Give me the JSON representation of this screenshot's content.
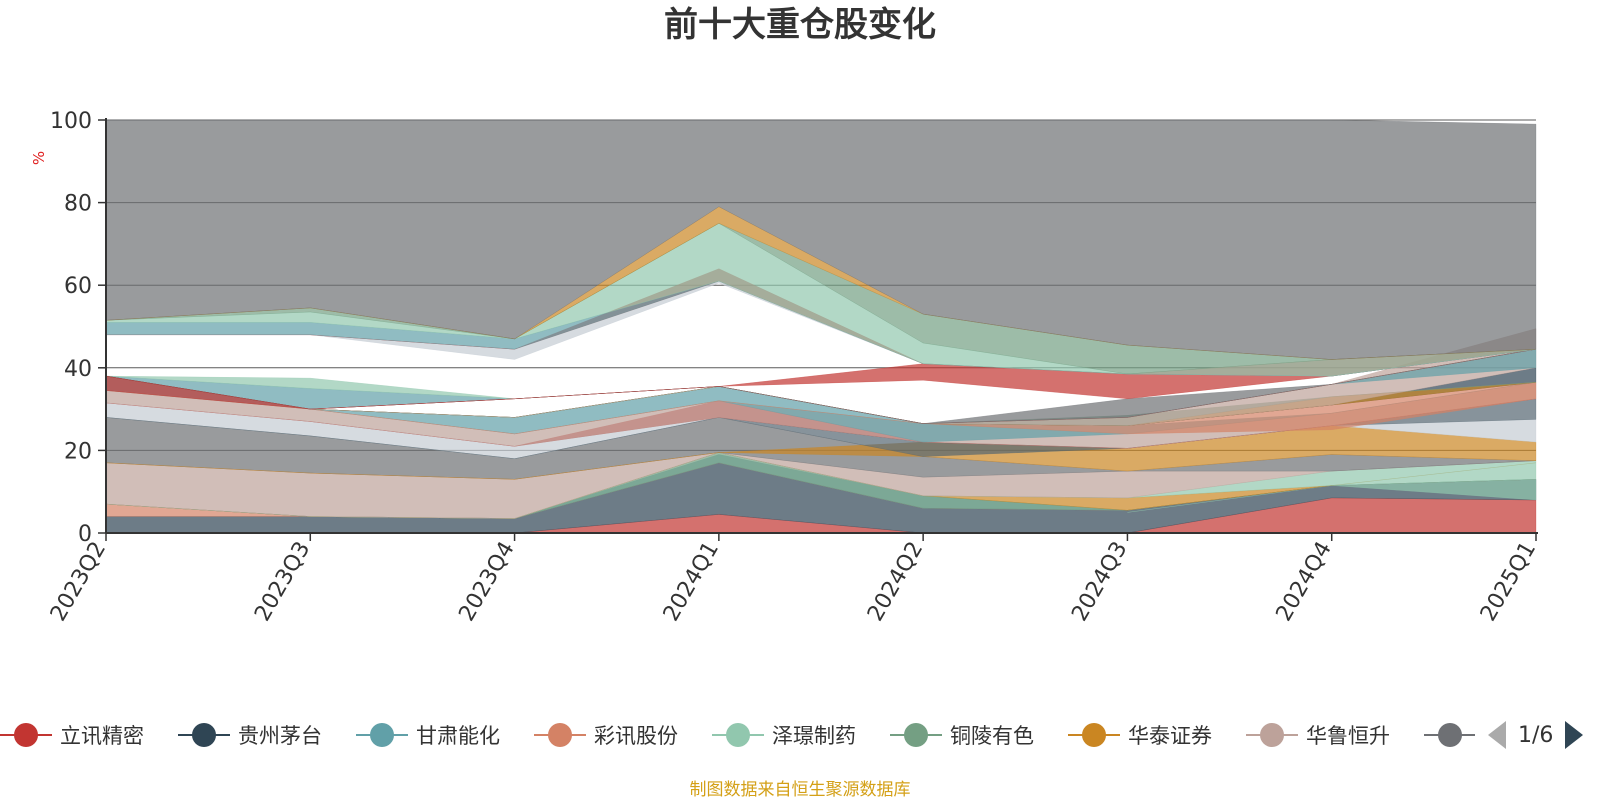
{
  "chart_data": {
    "type": "area",
    "title": "前十大重仓股变化",
    "ylabel": "%",
    "ylim": [
      0,
      100
    ],
    "yticks": [
      0,
      20,
      40,
      60,
      80,
      100
    ],
    "grid": true,
    "categories": [
      "2023Q2",
      "2023Q3",
      "2023Q4",
      "2024Q1",
      "2024Q2",
      "2024Q3",
      "2024Q4",
      "2025Q1"
    ],
    "bands": [
      {
        "color": "#c23531",
        "lower": [
          null,
          null,
          0,
          0,
          0,
          0,
          0,
          0
        ],
        "upper": [
          null,
          null,
          0,
          4.5,
          0,
          0,
          8.5,
          8
        ]
      },
      {
        "color": "#2f4554",
        "lower": [
          0,
          0,
          0,
          4.5,
          0,
          0,
          8.5,
          8
        ],
        "upper": [
          4,
          4,
          3.5,
          17,
          6,
          5.5,
          11.5,
          13
        ]
      },
      {
        "color": "#91c7ae",
        "lower": [
          null,
          null,
          null,
          null,
          null,
          5,
          11.5,
          8
        ],
        "upper": [
          null,
          null,
          null,
          null,
          null,
          5,
          11.5,
          13
        ]
      },
      {
        "color": "#d48265",
        "lower": [
          4,
          4,
          3.5,
          17,
          6,
          5.5,
          11.5,
          13
        ],
        "upper": [
          7,
          4,
          3.5,
          17,
          6,
          5.5,
          11.5,
          13
        ]
      },
      {
        "color": "#61a0a8",
        "lower": [
          7,
          4,
          3.5,
          17,
          6,
          5.5,
          11.5,
          13
        ],
        "upper": [
          7,
          4,
          3.5,
          19,
          9,
          5.5,
          11.5,
          13
        ]
      },
      {
        "color": "#749f83",
        "lower": [
          7,
          4,
          3.5,
          17,
          6,
          5.5,
          11.5,
          13
        ],
        "upper": [
          7,
          4,
          3.5,
          19.5,
          9,
          5.5,
          11.5,
          13
        ]
      },
      {
        "color": "#ca8622",
        "lower": [
          7,
          4,
          3.5,
          19.5,
          9,
          5.5,
          11.5,
          17
        ],
        "upper": [
          7,
          4,
          3.5,
          19.5,
          9,
          8.5,
          11.5,
          17
        ]
      },
      {
        "color": "#91c7ae",
        "lower": [
          7,
          4,
          3.5,
          19.5,
          9,
          8.5,
          11.5,
          13
        ],
        "upper": [
          7,
          4,
          3.5,
          19.5,
          9,
          8.5,
          15,
          17.5
        ]
      },
      {
        "color": "#bda29a",
        "lower": [
          7,
          4,
          3.5,
          19.5,
          9,
          8.5,
          15,
          17.5
        ],
        "upper": [
          17,
          14.5,
          13,
          19.5,
          13.5,
          15,
          15,
          17.5
        ]
      },
      {
        "color": "#6e7074",
        "lower": [
          17,
          14.5,
          13,
          19.5,
          13.5,
          15,
          15,
          17.5
        ],
        "upper": [
          28,
          23.5,
          18,
          28,
          18.5,
          15,
          19,
          17.5
        ]
      },
      {
        "color": "#ca8622",
        "lower": [
          17,
          14.5,
          13,
          19.5,
          18.5,
          15,
          19,
          17.5
        ],
        "upper": [
          17,
          14.5,
          13,
          19.5,
          22,
          20.5,
          26,
          22
        ]
      },
      {
        "color": "#c4ccd3",
        "lower": [
          28,
          23.5,
          18,
          28,
          22,
          20.5,
          26,
          22
        ],
        "upper": [
          31.5,
          27,
          21,
          28,
          22,
          20.5,
          26,
          27.5
        ]
      },
      {
        "color": "#546570",
        "lower": [
          28,
          23.5,
          18,
          28,
          18.5,
          20.5,
          26,
          27.5
        ],
        "upper": [
          28,
          23.5,
          18,
          28,
          22,
          20.5,
          26,
          32.5
        ]
      },
      {
        "color": "#c23531",
        "lower": [
          31.5,
          27,
          21,
          28,
          22,
          20.5,
          26,
          32.5
        ],
        "upper": [
          31.5,
          27,
          21,
          32,
          22,
          20.5,
          26,
          32.5
        ]
      },
      {
        "color": "#bda29a",
        "lower": [
          31.5,
          27,
          21,
          28,
          22,
          20.5,
          26,
          32.5
        ],
        "upper": [
          34.5,
          30,
          24,
          32,
          26.5,
          24,
          29,
          36.5
        ]
      },
      {
        "color": "#61a0a8",
        "lower": [
          34.5,
          30,
          24,
          32,
          22,
          24,
          29,
          36.5
        ],
        "upper": [
          38,
          30,
          28,
          35.5,
          26.5,
          26,
          29,
          36.5
        ]
      },
      {
        "color": "#d48265",
        "lower": [
          34.5,
          30,
          24,
          32,
          26.5,
          24,
          25,
          32.5
        ],
        "upper": [
          34.5,
          30,
          24,
          32,
          26.5,
          26,
          31,
          36.5
        ]
      },
      {
        "color": "#2f4554",
        "lower": [
          38,
          30,
          28,
          35.5,
          26.5,
          26,
          31,
          36.5
        ],
        "upper": [
          38,
          30,
          28,
          35.5,
          26.5,
          26,
          31,
          40
        ]
      },
      {
        "color": "#ca8622",
        "lower": [
          38,
          30,
          28,
          35.5,
          26.5,
          26,
          31,
          36.5
        ],
        "upper": [
          38,
          30,
          28,
          35.5,
          26.5,
          26,
          33,
          36.5
        ]
      },
      {
        "color": "#749f83",
        "lower": [
          38,
          30,
          28,
          35.5,
          26.5,
          26,
          33,
          36.5
        ],
        "upper": [
          38,
          30,
          28,
          35.5,
          26.5,
          28.5,
          33,
          36.5
        ]
      },
      {
        "color": "#bda29a",
        "lower": [
          38,
          30,
          28,
          35.5,
          26.5,
          26,
          31,
          40
        ],
        "upper": [
          38,
          30,
          28,
          35.5,
          26.5,
          28,
          36,
          49.5
        ]
      },
      {
        "color": "#61a0a8",
        "lower": [
          38,
          30,
          32.5,
          35.5,
          26.5,
          28,
          36,
          40
        ],
        "upper": [
          38,
          35,
          32.5,
          35.5,
          26.5,
          28,
          36,
          44.5
        ]
      },
      {
        "color": "#91c7ae",
        "lower": [
          38,
          35,
          32.5,
          35.5,
          26.5,
          28,
          36,
          44.5
        ],
        "upper": [
          38,
          37.5,
          32.5,
          35.5,
          26.5,
          28,
          36,
          44.5
        ]
      },
      {
        "color": "#c23531",
        "lower": [
          34.5,
          30,
          32.5,
          35.5,
          26.5,
          28,
          36,
          44.5
        ],
        "upper": [
          38,
          30,
          32.5,
          35.5,
          26.5,
          28,
          36,
          44.5
        ]
      },
      {
        "color": "#6e7074",
        "lower": [
          38,
          30,
          32.5,
          35.5,
          26.5,
          28,
          36,
          44.5
        ],
        "upper": [
          38,
          30,
          32.5,
          35.5,
          26.5,
          32.5,
          36,
          44.5
        ]
      },
      {
        "color": "#c23531",
        "lower": [
          38,
          30,
          32.5,
          35.5,
          37,
          32.5,
          38,
          44.5
        ],
        "upper": [
          38,
          30,
          32.5,
          35.5,
          41,
          38.5,
          38,
          44.5
        ]
      },
      {
        "color": "#c4ccd3",
        "lower": [
          48,
          48,
          42,
          60.5,
          41,
          38.5,
          38,
          44.5
        ],
        "upper": [
          48,
          48,
          44.5,
          61,
          41,
          38.5,
          38,
          44.5
        ]
      },
      {
        "color": "#c23531",
        "lower": [
          48,
          48,
          44.5,
          61,
          41,
          38.5,
          38,
          44.5
        ],
        "upper": [
          48,
          48,
          44.5,
          64,
          41,
          38.5,
          42,
          44.5
        ]
      },
      {
        "color": "#61a0a8",
        "lower": [
          48,
          48,
          44.5,
          61,
          41,
          38.5,
          38,
          44.5
        ],
        "upper": [
          51,
          51,
          47,
          61,
          41,
          38.5,
          38,
          44.5
        ]
      },
      {
        "color": "#91c7ae",
        "lower": [
          51,
          51,
          47,
          61,
          41,
          38.5,
          38,
          44.5
        ],
        "upper": [
          51.5,
          53.5,
          47,
          75,
          46,
          38.5,
          42,
          44.5
        ]
      },
      {
        "color": "#749f83",
        "lower": [
          51.5,
          53.5,
          47,
          75,
          46,
          38.5,
          42,
          44.5
        ],
        "upper": [
          51.5,
          54.5,
          47,
          75,
          53,
          45.5,
          42,
          44.5
        ]
      },
      {
        "color": "#ca8622",
        "lower": [
          51.5,
          54.5,
          47,
          75,
          53,
          45.5,
          42,
          44.5
        ],
        "upper": [
          51.5,
          54.5,
          47,
          79,
          53,
          45.5,
          42,
          44.5
        ]
      },
      {
        "color": "#6e7074",
        "lower": [
          51.5,
          54.5,
          47,
          79,
          53,
          45.5,
          42,
          44.5
        ],
        "upper": [
          100,
          100,
          100,
          100,
          100,
          100,
          100,
          99
        ]
      }
    ]
  },
  "legend": {
    "items": [
      {
        "name": "立讯精密",
        "color": "#c23531"
      },
      {
        "name": "贵州茅台",
        "color": "#2f4554"
      },
      {
        "name": "甘肃能化",
        "color": "#61a0a8"
      },
      {
        "name": "彩讯股份",
        "color": "#d48265"
      },
      {
        "name": "泽璟制药",
        "color": "#91c7ae"
      },
      {
        "name": "铜陵有色",
        "color": "#749f83"
      },
      {
        "name": "华泰证券",
        "color": "#ca8622"
      },
      {
        "name": "华鲁恒升",
        "color": "#bda29a"
      },
      {
        "name": "",
        "color": "#6e7074"
      }
    ],
    "page": "1/6"
  },
  "source": "制图数据来自恒生聚源数据库"
}
